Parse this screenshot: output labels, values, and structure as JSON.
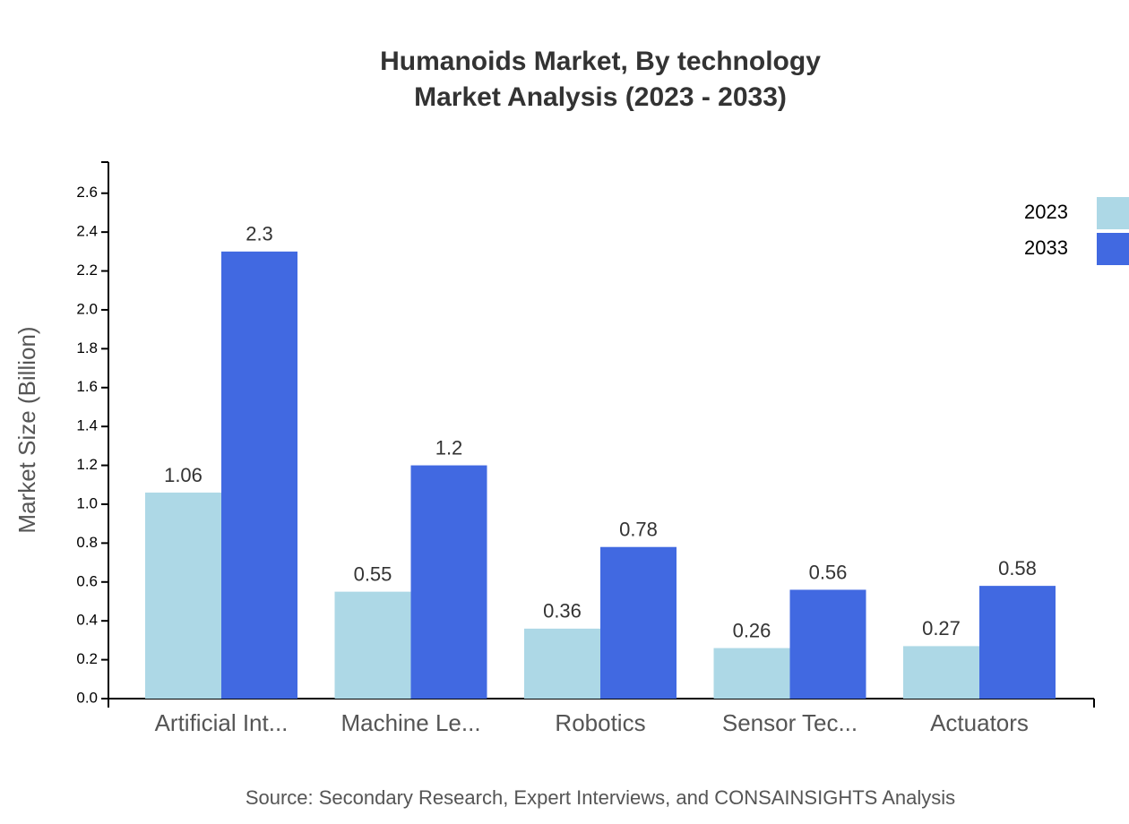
{
  "chart_data": {
    "type": "bar",
    "title": "Humanoids Market, By technology",
    "subtitle": "Market Analysis (2023 - 2033)",
    "y_label": "Market Size (Billion)",
    "source": "Source: Secondary Research, Expert Interviews, and CONSAINSIGHTS Analysis",
    "categories": [
      "Artificial Int...",
      "Machine Le...",
      "Robotics",
      "Sensor Tec...",
      "Actuators"
    ],
    "series": [
      {
        "name": "2023",
        "color": "#add8e6",
        "values": [
          1.06,
          0.55,
          0.36,
          0.26,
          0.27
        ]
      },
      {
        "name": "2033",
        "color": "#4169e1",
        "values": [
          2.3,
          1.2,
          0.78,
          0.56,
          0.58
        ]
      }
    ],
    "ylim": [
      0,
      2.76
    ],
    "yticks": [
      {
        "value": 0,
        "label": "0.0"
      },
      0.2,
      0.4,
      0.6,
      0.8,
      {
        "value": 1,
        "label": "1.0"
      },
      1.2,
      1.4,
      1.6,
      1.8,
      {
        "value": 2,
        "label": "2.0"
      },
      2.2,
      2.4,
      2.6
    ],
    "grid": false,
    "legend": "top-right"
  }
}
